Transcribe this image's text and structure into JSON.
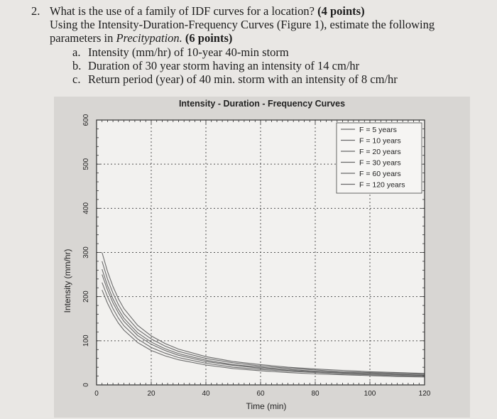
{
  "question": {
    "number": "2.",
    "line1_text": "What is the use of a family of IDF curves for a location?",
    "line1_points": "(4 points)",
    "line2": "Using the Intensity-Duration-Frequency Curves (Figure 1), estimate the following",
    "line3_text": "parameters in",
    "line3_italic": "Precitypation.",
    "line3_points": "(6 points)",
    "items": [
      {
        "label": "a.",
        "text": "Intensity (mm/hr) of 10-year 40-min storm"
      },
      {
        "label": "b.",
        "text": "Duration of 30 year storm having an intensity of 14 cm/hr"
      },
      {
        "label": "c.",
        "text": "Return period (year) of 40 min. storm with an intensity of 8 cm/hr"
      }
    ]
  },
  "chart_data": {
    "type": "line",
    "title": "Intensity - Duration - Frequency Curves",
    "xlabel": "Time (min)",
    "ylabel": "Intensity (mm/hr)",
    "xlim": [
      0,
      120
    ],
    "ylim": [
      0,
      600
    ],
    "xticks": [
      0,
      20,
      40,
      60,
      80,
      100,
      120
    ],
    "yticks": [
      0,
      100,
      200,
      300,
      400,
      500,
      600
    ],
    "grid": true,
    "legend_position": "top-right",
    "x": [
      2,
      4,
      6,
      8,
      10,
      15,
      20,
      25,
      30,
      40,
      50,
      60,
      70,
      80,
      90,
      100,
      110,
      120
    ],
    "series": [
      {
        "name": "F = 5 years",
        "values": [
          215,
          185,
          160,
          140,
          124,
          96,
          78,
          66,
          57,
          45,
          37,
          32,
          28,
          25,
          23,
          21,
          19,
          18
        ]
      },
      {
        "name": "F = 10 years",
        "values": [
          232,
          200,
          173,
          151,
          134,
          104,
          85,
          72,
          62,
          49,
          40,
          35,
          31,
          28,
          25,
          23,
          21,
          20
        ]
      },
      {
        "name": "F = 20 years",
        "values": [
          250,
          215,
          186,
          163,
          144,
          112,
          92,
          78,
          67,
          53,
          44,
          38,
          33,
          30,
          27,
          25,
          23,
          21
        ]
      },
      {
        "name": "F = 30 years",
        "values": [
          262,
          225,
          195,
          171,
          151,
          118,
          97,
          82,
          71,
          56,
          46,
          40,
          35,
          31,
          28,
          26,
          24,
          22
        ]
      },
      {
        "name": "F = 60 years",
        "values": [
          280,
          240,
          208,
          182,
          161,
          126,
          104,
          88,
          76,
          60,
          50,
          43,
          38,
          34,
          30,
          28,
          26,
          24
        ]
      },
      {
        "name": "F = 120 years",
        "values": [
          300,
          257,
          223,
          195,
          173,
          135,
          111,
          94,
          81,
          64,
          53,
          46,
          40,
          36,
          33,
          30,
          28,
          26
        ]
      }
    ]
  },
  "colors": {
    "curve": "#6a6a6a",
    "grid": "#555555",
    "plot_bg": "#f2f1ef",
    "figure_bg": "#d8d6d3"
  }
}
